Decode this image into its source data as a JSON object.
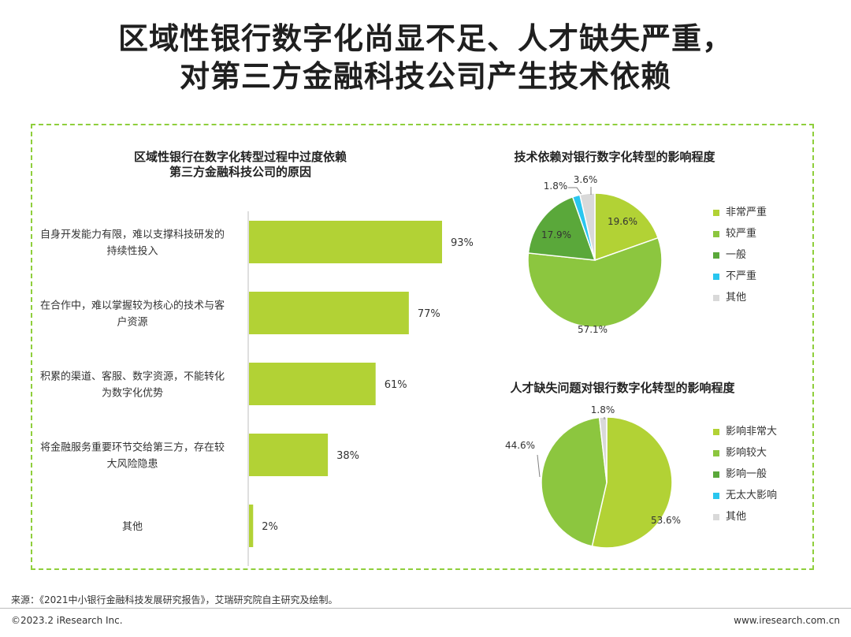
{
  "title": {
    "line1": "区域性银行数字化尚显不足、人才缺失严重，",
    "line2": "对第三方金融科技公司产生技术依赖"
  },
  "charts": {
    "bar_title_line1": "区域性银行在数字化转型过程中过度依赖",
    "bar_title_line2": "第三方金融科技公司的原因",
    "pie1_title": "技术依赖对银行数字化转型的影响程度",
    "pie2_title": "人才缺失问题对银行数字化转型的影响程度"
  },
  "colors": {
    "bar": "#b2d235",
    "pie": [
      "#b2d235",
      "#8cc63f",
      "#5aa83a",
      "#29c6ef",
      "#d9d9d9"
    ],
    "border": "#8fcf3c"
  },
  "chart_data": [
    {
      "type": "bar",
      "orientation": "horizontal",
      "title": "区域性银行在数字化转型过程中过度依赖第三方金融科技公司的原因",
      "categories": [
        [
          "自身开发能力有限，难以支撑科技研发的",
          "持续性投入"
        ],
        [
          "在合作中，难以掌握较为核心的技术与客",
          "户资源"
        ],
        [
          "积累的渠道、客服、数字资源，不能转化",
          "为数字化优势"
        ],
        [
          "将金融服务重要环节交给第三方，存在较",
          "大风险隐患"
        ],
        [
          "其他"
        ]
      ],
      "values": [
        93,
        77,
        61,
        38,
        2
      ],
      "value_labels": [
        "93%",
        "77%",
        "61%",
        "38%",
        "2%"
      ],
      "xlim": [
        0,
        100
      ],
      "grid": false
    },
    {
      "type": "pie",
      "title": "技术依赖对银行数字化转型的影响程度",
      "labels": [
        "非常严重",
        "较严重",
        "一般",
        "不严重",
        "其他"
      ],
      "values": [
        19.6,
        57.1,
        17.9,
        1.8,
        3.6
      ],
      "value_labels": [
        "19.6%",
        "57.1%",
        "17.9%",
        "1.8%",
        "3.6%"
      ],
      "legend": "right"
    },
    {
      "type": "pie",
      "title": "人才缺失问题对银行数字化转型的影响程度",
      "labels": [
        "影响非常大",
        "影响较大",
        "影响一般",
        "无太大影响",
        "其他"
      ],
      "values": [
        53.6,
        44.6,
        0,
        0,
        1.8
      ],
      "value_labels": [
        "53.6%",
        "44.6%",
        "",
        "",
        "1.8%"
      ],
      "legend": "right"
    }
  ],
  "footer": {
    "source": "来源：《2021中小银行金融科技发展研究报告》，艾瑞研究院自主研究及绘制。",
    "copyright": "©2023.2 iResearch Inc.",
    "website": "www.iresearch.com.cn"
  }
}
